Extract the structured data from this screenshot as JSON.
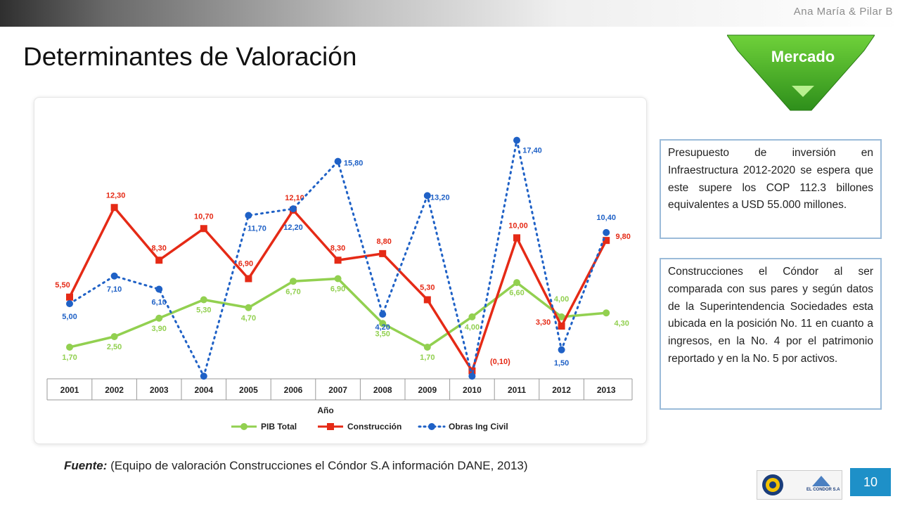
{
  "header": {
    "author": "Ana María & Pilar B",
    "title": "Determinantes de Valoración"
  },
  "badge": {
    "label": "Mercado"
  },
  "colors": {
    "pib": "#92d050",
    "construccion": "#e52a16",
    "obras": "#1f61c6",
    "accent": "#1e90c8"
  },
  "chart_data": {
    "type": "line",
    "categories": [
      "2001",
      "2002",
      "2003",
      "2004",
      "2005",
      "2006",
      "2007",
      "2008",
      "2009",
      "2010",
      "2011",
      "2012",
      "2013"
    ],
    "xlabel": "Año",
    "ylim": [
      -0.7,
      18.5
    ],
    "legend_position": "bottom",
    "grid": false,
    "series": [
      {
        "name": "PIB Total",
        "color": "#92d050",
        "style": "solid",
        "marker": "circle",
        "values": [
          1.7,
          2.5,
          3.9,
          5.3,
          4.7,
          6.7,
          6.9,
          3.5,
          1.7,
          4.0,
          6.6,
          4.0,
          4.3
        ],
        "labels": [
          "1,70",
          "2,50",
          "3,90",
          "5,30",
          "4,70",
          "6,70",
          "6,90",
          "3,50",
          "1,70",
          "4,00",
          "6,60",
          "4,00",
          "4,30"
        ]
      },
      {
        "name": "Construcción",
        "color": "#e52a16",
        "style": "solid",
        "marker": "square",
        "values": [
          5.5,
          12.3,
          8.3,
          10.7,
          6.9,
          12.1,
          8.3,
          8.8,
          5.3,
          -0.1,
          10.0,
          3.3,
          9.8
        ],
        "labels": [
          "5,50",
          "12,30",
          "8,30",
          "10,70",
          "6,90",
          "12,10",
          "8,30",
          "8,80",
          "5,30",
          "(0,10)",
          "10,00",
          "3,30",
          "9,80"
        ]
      },
      {
        "name": "Obras Ing Civil",
        "color": "#1f61c6",
        "style": "dotted",
        "marker": "circle",
        "values": [
          5.0,
          7.1,
          6.1,
          -0.5,
          11.7,
          12.2,
          15.8,
          4.2,
          13.2,
          -0.5,
          17.4,
          1.5,
          10.4
        ],
        "labels": [
          "5,00",
          "7,10",
          "6,10",
          "",
          "11,70",
          "12,20",
          "15,80",
          "4,20",
          "13,20",
          "",
          "17,40",
          "1,50",
          "10,40"
        ]
      }
    ]
  },
  "notes": {
    "note1": "Presupuesto de inversión en Infraestructura 2012-2020 se espera que este supere los COP 112.3 billones equivalentes a USD 55.000 millones.",
    "note2": "Construcciones el Cóndor al ser comparada con sus pares y según datos de la Superintendencia Sociedades esta ubicada en la posición No. 11 en cuanto a ingresos, en la No. 4 por el patrimonio reportado y en la No. 5 por activos."
  },
  "source": {
    "prefix": "Fuente:",
    "text": " (Equipo de valoración Construcciones el Cóndor S.A información DANE, 2013)"
  },
  "logo": {
    "text": "EL CONDOR S.A"
  },
  "page_number": "10"
}
